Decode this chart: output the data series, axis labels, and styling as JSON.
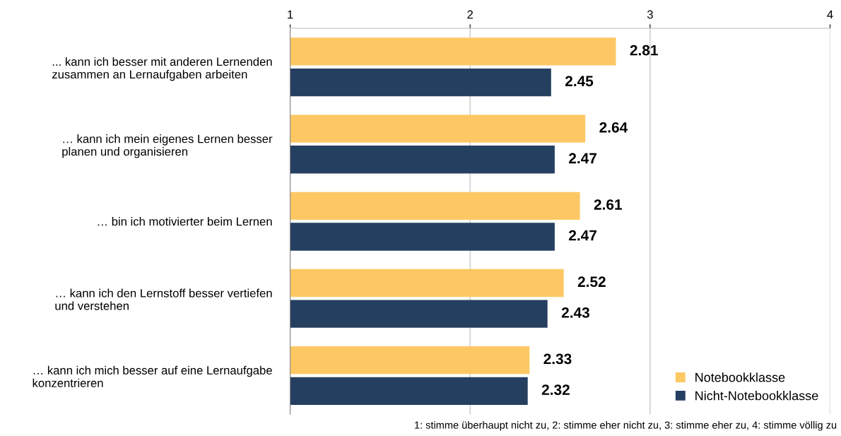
{
  "chart_data": {
    "type": "bar",
    "orientation": "horizontal",
    "categories": [
      "... kann ich besser mit anderen Lernenden\nzusammen an Lernaufgaben arbeiten",
      "… kann ich mein eigenes Lernen besser\nplanen und organisieren",
      "… bin ich motivierter beim Lernen",
      "… kann ich den Lernstoff besser vertiefen\nund verstehen",
      "… kann ich mich besser auf eine Lernaufgabe\nkonzentrieren"
    ],
    "series": [
      {
        "name": "Notebookklasse",
        "color": "#fdc864",
        "values": [
          2.81,
          2.64,
          2.61,
          2.52,
          2.33
        ]
      },
      {
        "name": "Nicht-Notebookklasse",
        "color": "#253f60",
        "values": [
          2.45,
          2.47,
          2.47,
          2.43,
          2.32
        ]
      }
    ],
    "xlim": [
      1,
      4
    ],
    "xticks": [
      1,
      2,
      3,
      4
    ],
    "grid": "x",
    "data_labels": true,
    "legend": "bottom right",
    "annotations": [
      "1: stimme überhaupt nicht zu, 2: stimme eher nicht zu, 3: stimme eher zu, 4: stimme völlig zu"
    ]
  }
}
